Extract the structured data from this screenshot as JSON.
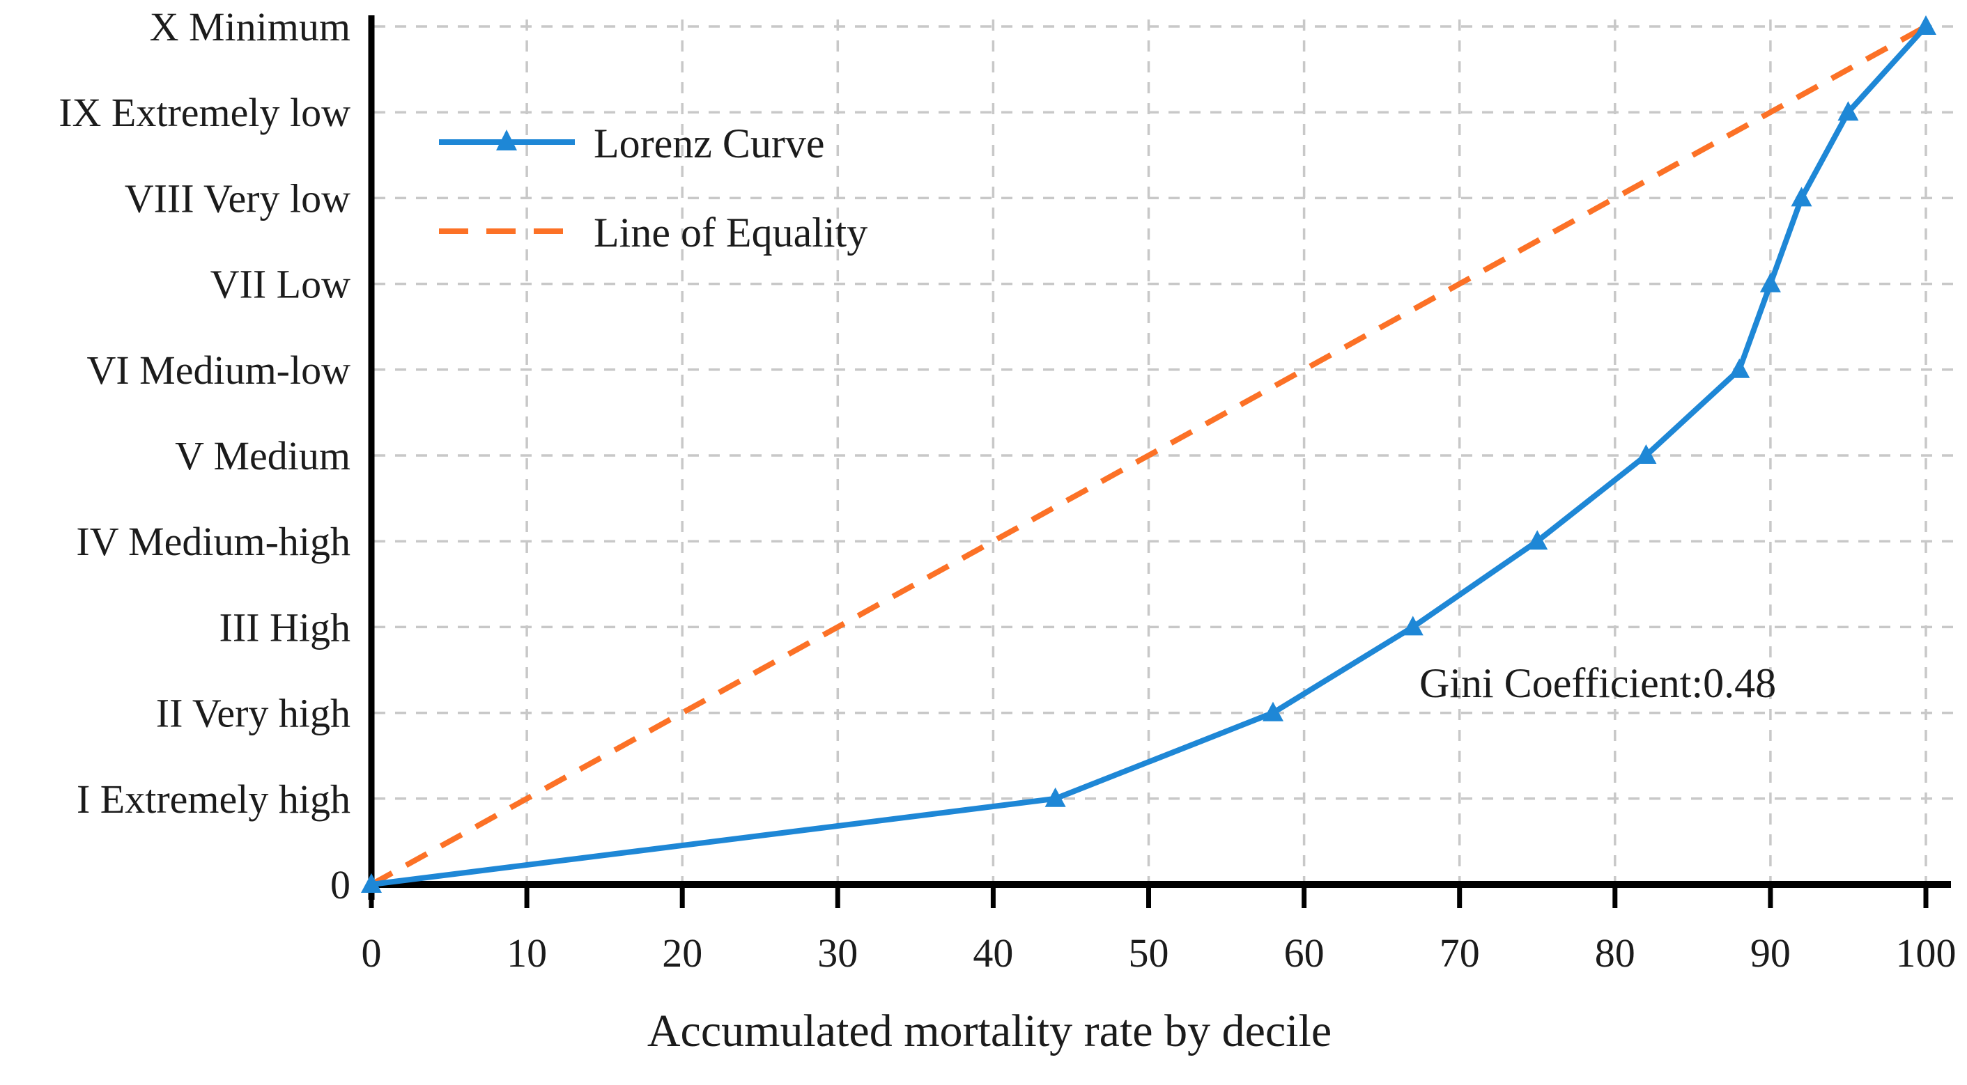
{
  "figure": {
    "background": "#ffffff",
    "text_color": "#1b1b1b",
    "axis_color": "#000000",
    "grid_color": "#c8c8c8"
  },
  "chart_data": {
    "type": "line",
    "title": "",
    "xlabel": "Accumulated mortality rate by decile",
    "ylabel": "",
    "xlim": [
      0,
      100
    ],
    "x_ticks": [
      0,
      10,
      20,
      30,
      40,
      50,
      60,
      70,
      80,
      90,
      100
    ],
    "y_categories": [
      "0",
      "I Extremely high",
      "II Very high",
      "III High",
      "IV Medium-high",
      "V Medium",
      "VI Medium-low",
      "VII Low",
      "VIII Very low",
      "IX Extremely low",
      "X Minimum"
    ],
    "grid": true,
    "grid_style": "dashed",
    "legend_position": "upper-left-inside",
    "annotation": "Gini Coefficient:0.48",
    "series": [
      {
        "name": "Lorenz Curve",
        "color": "#1e87d6",
        "line_style": "solid",
        "marker": "triangle-up",
        "x": [
          0,
          44,
          58,
          67,
          75,
          82,
          88,
          90,
          92,
          95,
          100
        ],
        "y_level": [
          0,
          1,
          2,
          3,
          4,
          5,
          6,
          7,
          8,
          9,
          10
        ]
      },
      {
        "name": "Line of Equality",
        "color": "#fc7126",
        "line_style": "dashed",
        "marker": "none",
        "x": [
          0,
          100
        ],
        "y_level": [
          0,
          10
        ]
      }
    ]
  }
}
